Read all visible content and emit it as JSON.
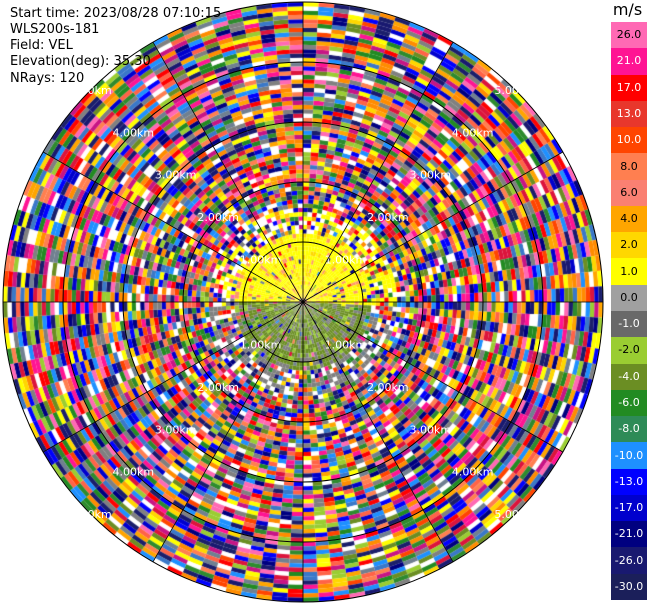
{
  "header": {
    "start_time": "Start time: 2023/08/28 07:10:15",
    "instrument": "WLS200s-181",
    "field": "Field: VEL",
    "elevation": "Elevation(deg): 35.30",
    "nrays": "NRays: 120"
  },
  "colors": {
    "palette": [
      "#1b1f6b",
      "#191970",
      "#000080",
      "#0000cd",
      "#0000ff",
      "#1e90ff",
      "#3a78c8",
      "#228b22",
      "#2e8b2e",
      "#6b8e23",
      "#9acd32",
      "#808080",
      "#708090",
      "#ffff00",
      "#ffd700",
      "#ffa500",
      "#ff8c00",
      "#ff7f50",
      "#ff4500",
      "#ff6347",
      "#ff0000",
      "#dc143c",
      "#c71585",
      "#ff1493",
      "#ff69b4"
    ],
    "core_yellow": "#ffff00",
    "core_green": "#6b8e23",
    "core_grey": "#808080"
  },
  "chart_data": {
    "type": "heatmap",
    "title": "",
    "field": "VEL",
    "units": "m/s",
    "nrays": 120,
    "elevation_deg": 35.3,
    "range_km_max": 5.0,
    "range_rings_km": [
      1.0,
      2.0,
      3.0,
      4.0,
      5.0
    ],
    "range_ring_labels": [
      "1.00km",
      "2.00km",
      "3.00km",
      "4.00km",
      "5.00km"
    ],
    "colorbar": {
      "unit": "m/s",
      "labels": [
        "26.0",
        "21.0",
        "17.0",
        "13.0",
        "10.0",
        "8.0",
        "6.0",
        "4.0",
        "2.0",
        "1.0",
        "0.0",
        "-1.0",
        "-2.0",
        "-4.0",
        "-6.0",
        "-8.0",
        "-10.0",
        "-13.0",
        "-17.0",
        "-21.0",
        "-26.0",
        "-30.0"
      ],
      "colors": [
        "#ff69b4",
        "#ff1493",
        "#ff0000",
        "#e8372c",
        "#ff4500",
        "#ff7f50",
        "#fa8072",
        "#ffa500",
        "#ffd700",
        "#ffff00",
        "#a0a0a0",
        "#696969",
        "#9acd32",
        "#6b8e23",
        "#228b22",
        "#2e8b57",
        "#1e90ff",
        "#0000ff",
        "#0000cd",
        "#000080",
        "#191970",
        "#1b1f5a"
      ]
    },
    "near_range_pattern": "north sector yellow (positive), south sector green/grey (negative), noisy beyond ~1.2 km"
  }
}
